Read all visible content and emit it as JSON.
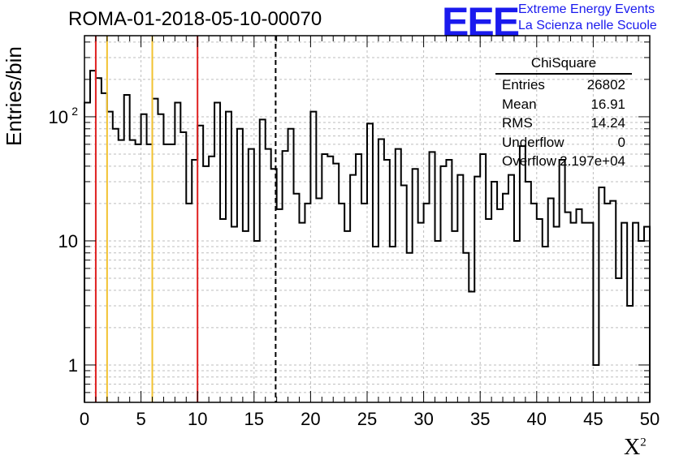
{
  "page_title": "ROMA-01-2018-05-10-00070",
  "logo": {
    "mark": "EEE",
    "line1": "Extreme Energy Events",
    "line2": "La Scienza nelle Scuole",
    "color": "#1a1aee"
  },
  "stats": {
    "title": "ChiSquare",
    "rows": [
      {
        "key": "Entries",
        "value": "26802"
      },
      {
        "key": "Mean",
        "value": "16.91"
      },
      {
        "key": "RMS",
        "value": "14.24"
      },
      {
        "key": "Underflow",
        "value": "0"
      },
      {
        "key": "Overflow",
        "value": "2.197e+04"
      }
    ]
  },
  "chart_data": {
    "type": "histogram",
    "ylabel": "Entries/bin",
    "xlabel": "X",
    "xlabel_sup": "2",
    "xlim": [
      0,
      50
    ],
    "ylim": [
      0.5,
      450
    ],
    "yscale": "log",
    "grid": true,
    "bin_width": 0.5,
    "x_ticks": [
      0,
      5,
      10,
      15,
      20,
      25,
      30,
      35,
      40,
      45,
      50
    ],
    "y_tick_labels": [
      {
        "value": 1,
        "label": "1"
      },
      {
        "value": 10,
        "label": "10"
      },
      {
        "value": 100,
        "label": "10",
        "sup": "2"
      }
    ],
    "values": [
      130,
      235,
      205,
      155,
      110,
      80,
      65,
      150,
      65,
      60,
      105,
      60,
      140,
      105,
      60,
      60,
      130,
      75,
      20,
      45,
      85,
      40,
      48,
      130,
      15,
      110,
      13,
      80,
      12,
      55,
      10,
      95,
      55,
      38,
      18,
      53,
      80,
      24,
      14,
      20,
      110,
      22,
      50,
      48,
      42,
      20,
      12,
      34,
      50,
      20,
      88,
      9,
      66,
      45,
      9,
      55,
      28,
      8,
      38,
      14,
      20,
      52,
      10,
      40,
      45,
      12,
      34,
      8,
      3.9,
      33,
      50,
      15,
      30,
      18,
      24,
      34,
      10,
      58,
      30,
      20,
      15,
      9,
      22,
      13,
      45,
      17,
      14,
      18,
      14,
      14,
      1,
      27,
      20,
      21,
      5,
      14,
      3,
      14,
      10,
      13
    ],
    "vlines": [
      {
        "x": 1,
        "color": "#e02020",
        "style": "solid"
      },
      {
        "x": 2,
        "color": "#f2c230",
        "style": "solid"
      },
      {
        "x": 6,
        "color": "#f2c230",
        "style": "solid"
      },
      {
        "x": 10,
        "color": "#e02020",
        "style": "solid"
      },
      {
        "x": 16.91,
        "color": "#000000",
        "style": "dashed"
      }
    ]
  }
}
